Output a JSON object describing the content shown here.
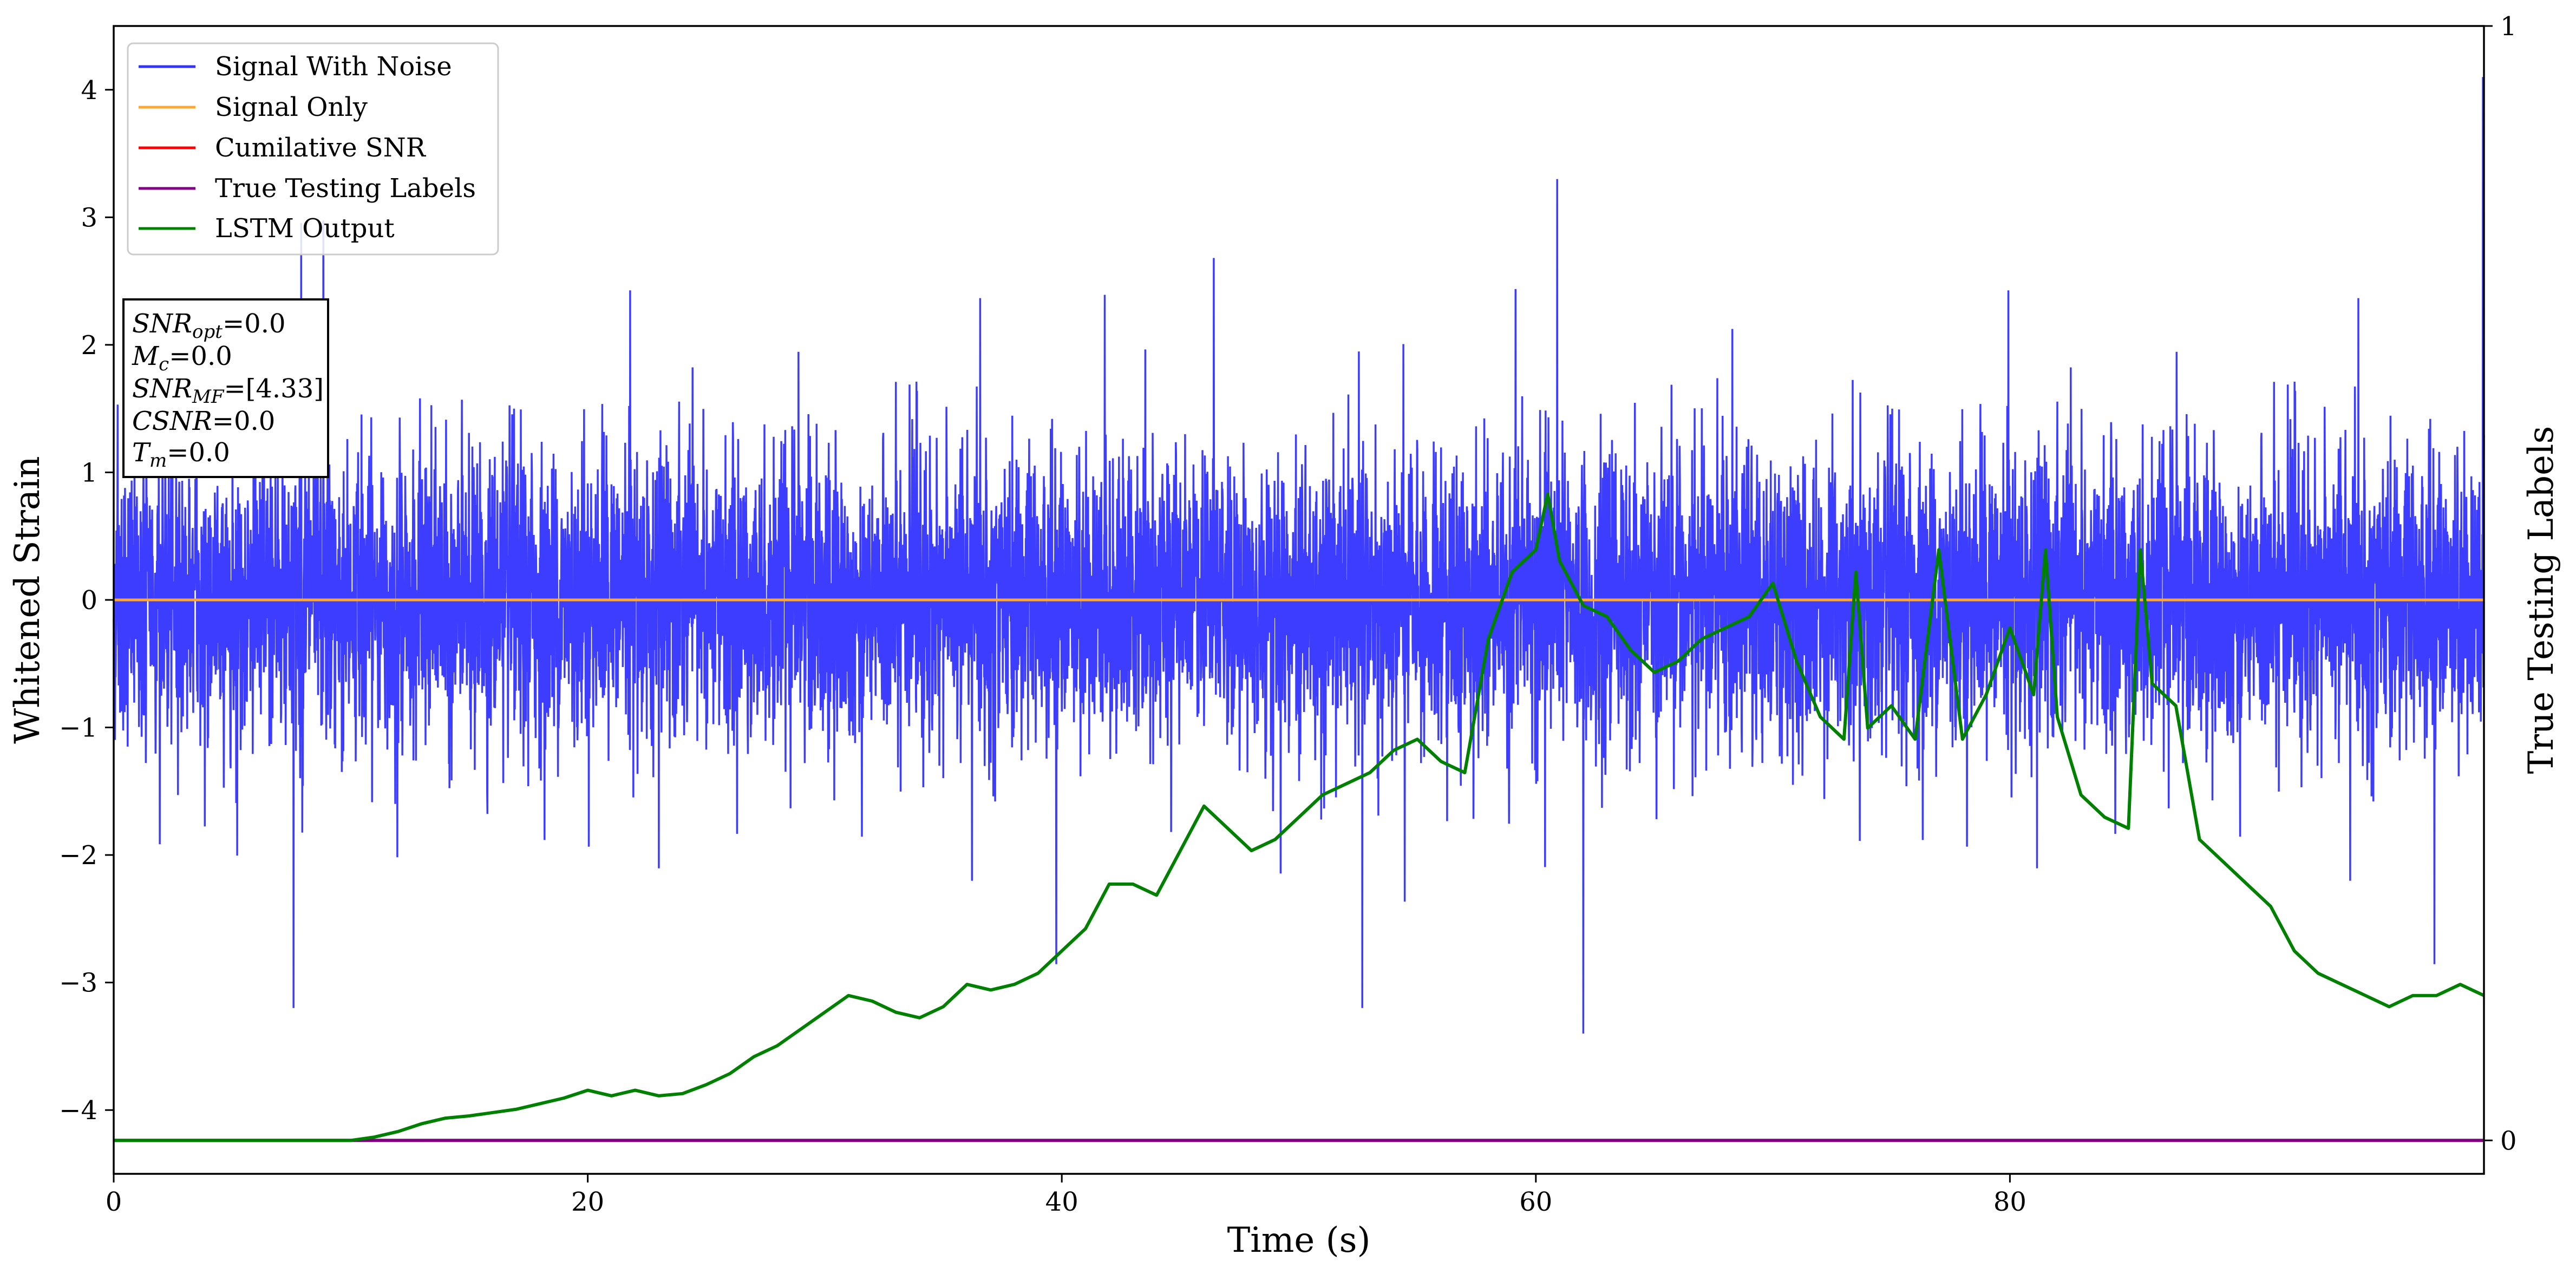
{
  "chart_data": {
    "type": "line",
    "xlabel": "Time (s)",
    "ylabel": "Whitened Strain",
    "y2label": "True Testing Labels",
    "xlim": [
      0,
      100
    ],
    "ylim": [
      -4.5,
      4.5
    ],
    "y2lim": [
      -0.03,
      1.0
    ],
    "xticks": [
      0,
      20,
      40,
      60,
      80
    ],
    "yticks": [
      4,
      3,
      2,
      1,
      0,
      -1,
      -2,
      -3,
      -4
    ],
    "y2ticks": [
      1,
      0
    ],
    "legend_position": "upper-left",
    "grid": false,
    "series": [
      {
        "name": "Signal With Noise",
        "color": "#3333ff",
        "axis": "left",
        "kind": "noise",
        "approx_extremes": {
          "max": 4.1,
          "min": -3.4
        }
      },
      {
        "name": "Signal Only",
        "color": "#ffa733",
        "axis": "left",
        "x": [
          0,
          100
        ],
        "values": [
          0,
          0
        ]
      },
      {
        "name": "Cumilative SNR",
        "color": "#ff0000",
        "axis": "left",
        "x": [
          0,
          100
        ],
        "values": [
          0,
          0
        ]
      },
      {
        "name": "True Testing Labels",
        "color": "#800080",
        "axis": "right",
        "x": [
          0,
          100
        ],
        "values": [
          0,
          0
        ]
      },
      {
        "name": "LSTM Output",
        "color": "#008000",
        "axis": "right",
        "x": [
          0,
          10,
          11,
          12,
          13,
          14,
          15,
          16,
          17,
          18,
          19,
          20,
          21,
          22,
          23,
          24,
          25,
          26,
          27,
          28,
          29,
          30,
          31,
          32,
          33,
          34,
          35,
          36,
          37,
          38,
          39,
          40,
          41,
          42,
          43,
          44,
          45,
          46,
          47,
          48,
          49,
          50,
          51,
          52,
          53,
          54,
          55,
          56,
          57,
          58,
          59,
          60,
          60.5,
          61,
          62,
          63,
          64,
          65,
          66,
          67,
          68,
          69,
          70,
          71,
          72,
          73,
          73.5,
          74,
          75,
          76,
          77,
          78,
          79,
          80,
          81,
          81.5,
          82,
          83,
          84,
          85,
          85.5,
          86,
          87,
          88,
          89,
          90,
          91,
          92,
          93,
          94,
          95,
          96,
          97,
          98,
          99,
          100
        ],
        "values": [
          0.0,
          0.0,
          0.003,
          0.008,
          0.015,
          0.02,
          0.022,
          0.025,
          0.028,
          0.033,
          0.038,
          0.045,
          0.04,
          0.045,
          0.04,
          0.042,
          0.05,
          0.06,
          0.075,
          0.085,
          0.1,
          0.115,
          0.13,
          0.125,
          0.115,
          0.11,
          0.12,
          0.14,
          0.135,
          0.14,
          0.15,
          0.17,
          0.19,
          0.23,
          0.23,
          0.22,
          0.26,
          0.3,
          0.28,
          0.26,
          0.27,
          0.29,
          0.31,
          0.32,
          0.33,
          0.35,
          0.36,
          0.34,
          0.33,
          0.45,
          0.51,
          0.53,
          0.58,
          0.52,
          0.48,
          0.47,
          0.44,
          0.42,
          0.43,
          0.45,
          0.46,
          0.47,
          0.5,
          0.43,
          0.38,
          0.36,
          0.51,
          0.37,
          0.39,
          0.36,
          0.53,
          0.36,
          0.4,
          0.46,
          0.4,
          0.53,
          0.38,
          0.31,
          0.29,
          0.28,
          0.53,
          0.41,
          0.39,
          0.27,
          0.25,
          0.23,
          0.21,
          0.17,
          0.15,
          0.14,
          0.13,
          0.12,
          0.13,
          0.13,
          0.14,
          0.13
        ]
      }
    ],
    "annotation": {
      "lines": [
        {
          "sym": "SNR",
          "sub": "opt",
          "value": "=0.0"
        },
        {
          "sym": "M",
          "sub": "c",
          "value": "=0.0"
        },
        {
          "sym": "SNR",
          "sub": "MF",
          "value": "=[4.33]"
        },
        {
          "sym": "CSNR",
          "sub": "",
          "value": "=0.0"
        },
        {
          "sym": "T",
          "sub": "m",
          "value": "=0.0"
        }
      ]
    }
  }
}
